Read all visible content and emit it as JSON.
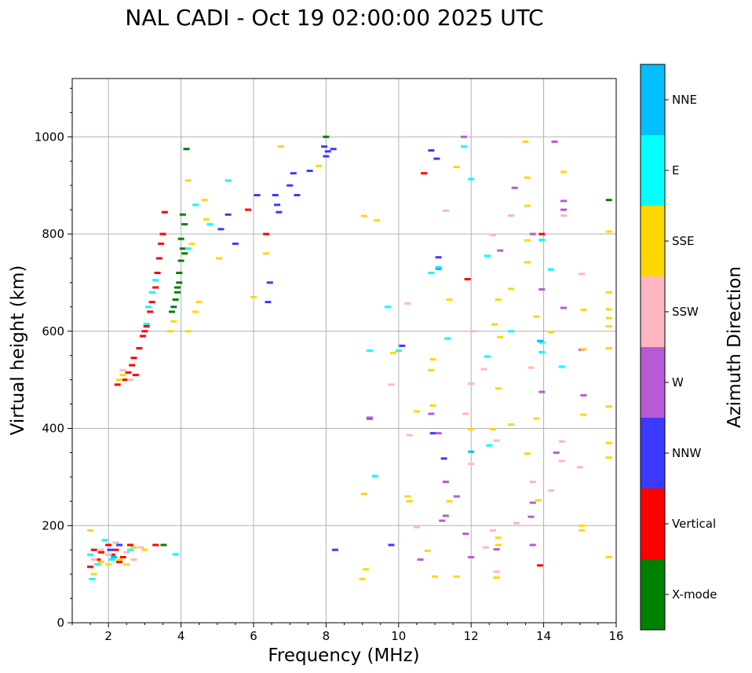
{
  "chart_data": {
    "type": "scatter",
    "title": "NAL CADI - Oct 19 02:00:00 2025 UTC",
    "xlabel": "Frequency (MHz)",
    "ylabel": "Virtual height (km)",
    "xlim": [
      1,
      16
    ],
    "ylim": [
      0,
      1120
    ],
    "xticks": [
      2,
      4,
      6,
      8,
      10,
      12,
      14,
      16
    ],
    "yticks": [
      0,
      200,
      400,
      600,
      800,
      1000
    ],
    "grid": true,
    "colorbar": {
      "label": "Azimuth Direction",
      "categories": [
        {
          "name": "X-mode",
          "color": "#008000"
        },
        {
          "name": "Vertical",
          "color": "#ff0000"
        },
        {
          "name": "NNW",
          "color": "#3a3aff"
        },
        {
          "name": "W",
          "color": "#b85ad6"
        },
        {
          "name": "SSW",
          "color": "#ffb6c1"
        },
        {
          "name": "SSE",
          "color": "#ffd700"
        },
        {
          "name": "E",
          "color": "#00ffff"
        },
        {
          "name": "NNE",
          "color": "#00bfff"
        }
      ]
    },
    "series": [
      {
        "name": "X-mode",
        "color": "#008000",
        "points": [
          [
            3.52,
            160
          ],
          [
            4.15,
            975
          ],
          [
            4.05,
            840
          ],
          [
            4.1,
            820
          ],
          [
            4.0,
            790
          ],
          [
            4.05,
            770
          ],
          [
            4.0,
            745
          ],
          [
            3.95,
            720
          ],
          [
            3.95,
            700
          ],
          [
            3.9,
            680
          ],
          [
            3.85,
            665
          ],
          [
            3.8,
            650
          ],
          [
            3.75,
            640
          ],
          [
            4.1,
            760
          ],
          [
            3.9,
            690
          ],
          [
            15.8,
            870
          ],
          [
            8.0,
            1000
          ]
        ]
      },
      {
        "name": "Vertical",
        "color": "#ff0000",
        "points": [
          [
            1.5,
            115
          ],
          [
            1.7,
            130
          ],
          [
            1.8,
            145
          ],
          [
            2.0,
            160
          ],
          [
            2.2,
            150
          ],
          [
            2.4,
            135
          ],
          [
            2.6,
            160
          ],
          [
            1.6,
            150
          ],
          [
            2.1,
            140
          ],
          [
            2.3,
            125
          ],
          [
            3.3,
            160
          ],
          [
            2.25,
            490
          ],
          [
            2.45,
            500
          ],
          [
            2.55,
            515
          ],
          [
            2.65,
            530
          ],
          [
            2.7,
            545
          ],
          [
            2.85,
            565
          ],
          [
            2.95,
            590
          ],
          [
            3.05,
            610
          ],
          [
            3.15,
            640
          ],
          [
            3.2,
            660
          ],
          [
            3.3,
            690
          ],
          [
            3.35,
            720
          ],
          [
            3.4,
            750
          ],
          [
            3.45,
            780
          ],
          [
            3.5,
            800
          ],
          [
            3.55,
            845
          ],
          [
            10.7,
            925
          ],
          [
            11.9,
            707
          ],
          [
            13.9,
            118
          ],
          [
            13.95,
            800
          ],
          [
            5.85,
            850
          ],
          [
            6.35,
            800
          ],
          [
            2.75,
            510
          ],
          [
            3.0,
            600
          ]
        ]
      },
      {
        "name": "NNW",
        "color": "#3a3aff",
        "points": [
          [
            6.6,
            880
          ],
          [
            6.65,
            860
          ],
          [
            6.7,
            845
          ],
          [
            7.0,
            900
          ],
          [
            7.1,
            925
          ],
          [
            7.2,
            880
          ],
          [
            7.95,
            980
          ],
          [
            8.05,
            970
          ],
          [
            8.2,
            975
          ],
          [
            8.25,
            150
          ],
          [
            9.2,
            420
          ],
          [
            9.8,
            160
          ],
          [
            10.1,
            570
          ],
          [
            10.9,
            972
          ],
          [
            11.05,
            955
          ],
          [
            11.1,
            752
          ],
          [
            10.95,
            390
          ],
          [
            11.25,
            338
          ],
          [
            6.1,
            880
          ],
          [
            5.3,
            840
          ],
          [
            5.1,
            810
          ],
          [
            6.45,
            700
          ],
          [
            6.4,
            660
          ],
          [
            2.05,
            150
          ],
          [
            2.3,
            160
          ],
          [
            7.55,
            930
          ],
          [
            8.0,
            960
          ],
          [
            5.5,
            780
          ]
        ]
      },
      {
        "name": "W",
        "color": "#b85ad6",
        "points": [
          [
            9.2,
            422
          ],
          [
            10.6,
            130
          ],
          [
            10.9,
            430
          ],
          [
            11.2,
            210
          ],
          [
            11.3,
            220
          ],
          [
            11.1,
            390
          ],
          [
            11.3,
            290
          ],
          [
            11.6,
            260
          ],
          [
            11.85,
            183
          ],
          [
            12.0,
            135
          ],
          [
            12.8,
            766
          ],
          [
            13.2,
            895
          ],
          [
            13.65,
            218
          ],
          [
            13.7,
            160
          ],
          [
            13.7,
            247
          ],
          [
            13.95,
            686
          ],
          [
            13.95,
            475
          ],
          [
            14.3,
            990
          ],
          [
            14.35,
            350
          ],
          [
            14.55,
            648
          ],
          [
            14.55,
            868
          ],
          [
            14.55,
            850
          ],
          [
            15.05,
            562
          ],
          [
            15.1,
            468
          ],
          [
            12.7,
            151
          ],
          [
            13.7,
            800
          ],
          [
            11.8,
            1000
          ]
        ]
      },
      {
        "name": "SSW",
        "color": "#ffb6c1",
        "points": [
          [
            1.6,
            130
          ],
          [
            1.8,
            150
          ],
          [
            2.0,
            140
          ],
          [
            2.2,
            165
          ],
          [
            2.5,
            145
          ],
          [
            2.7,
            130
          ],
          [
            2.9,
            155
          ],
          [
            2.4,
            520
          ],
          [
            2.6,
            500
          ],
          [
            9.8,
            490
          ],
          [
            10.25,
            657
          ],
          [
            10.3,
            386
          ],
          [
            11.3,
            848
          ],
          [
            11.85,
            430
          ],
          [
            12.0,
            492
          ],
          [
            12.0,
            327
          ],
          [
            12.05,
            600
          ],
          [
            12.35,
            522
          ],
          [
            12.4,
            155
          ],
          [
            12.6,
            190
          ],
          [
            12.7,
            105
          ],
          [
            12.7,
            375
          ],
          [
            13.1,
            838
          ],
          [
            13.65,
            525
          ],
          [
            13.7,
            290
          ],
          [
            14.2,
            272
          ],
          [
            14.5,
            333
          ],
          [
            14.5,
            373
          ],
          [
            14.55,
            838
          ],
          [
            15.0,
            320
          ],
          [
            15.05,
            718
          ],
          [
            10.5,
            197
          ],
          [
            13.25,
            205
          ],
          [
            12.6,
            798
          ]
        ]
      },
      {
        "name": "SSE",
        "color": "#ffd700",
        "points": [
          [
            1.5,
            190
          ],
          [
            1.6,
            100
          ],
          [
            1.8,
            125
          ],
          [
            2.0,
            120
          ],
          [
            2.3,
            130
          ],
          [
            2.5,
            120
          ],
          [
            2.7,
            155
          ],
          [
            3.0,
            150
          ],
          [
            2.4,
            510
          ],
          [
            2.3,
            500
          ],
          [
            3.7,
            600
          ],
          [
            3.8,
            620
          ],
          [
            4.2,
            600
          ],
          [
            4.4,
            640
          ],
          [
            4.5,
            660
          ],
          [
            4.2,
            910
          ],
          [
            4.7,
            830
          ],
          [
            4.65,
            870
          ],
          [
            4.3,
            780
          ],
          [
            5.05,
            750
          ],
          [
            6.0,
            670
          ],
          [
            6.35,
            760
          ],
          [
            6.75,
            980
          ],
          [
            7.8,
            940
          ],
          [
            9.0,
            90
          ],
          [
            9.1,
            110
          ],
          [
            9.05,
            265
          ],
          [
            9.05,
            837
          ],
          [
            9.4,
            828
          ],
          [
            9.85,
            555
          ],
          [
            10.25,
            260
          ],
          [
            10.3,
            250
          ],
          [
            10.5,
            435
          ],
          [
            10.8,
            148
          ],
          [
            10.9,
            520
          ],
          [
            10.95,
            542
          ],
          [
            10.95,
            447
          ],
          [
            11.0,
            95
          ],
          [
            11.4,
            250
          ],
          [
            11.4,
            665
          ],
          [
            11.6,
            95
          ],
          [
            11.6,
            938
          ],
          [
            12.0,
            398
          ],
          [
            12.6,
            398
          ],
          [
            12.65,
            614
          ],
          [
            12.7,
            93
          ],
          [
            12.75,
            160
          ],
          [
            12.75,
            175
          ],
          [
            12.75,
            482
          ],
          [
            12.75,
            665
          ],
          [
            12.8,
            588
          ],
          [
            13.1,
            408
          ],
          [
            13.1,
            687
          ],
          [
            13.5,
            990
          ],
          [
            13.55,
            348
          ],
          [
            13.55,
            916
          ],
          [
            13.55,
            858
          ],
          [
            13.55,
            742
          ],
          [
            13.55,
            787
          ],
          [
            13.8,
            420
          ],
          [
            13.8,
            630
          ],
          [
            13.85,
            252
          ],
          [
            14.2,
            598
          ],
          [
            14.55,
            928
          ],
          [
            15.05,
            190
          ],
          [
            15.05,
            200
          ],
          [
            15.1,
            428
          ],
          [
            15.1,
            563
          ],
          [
            15.1,
            644
          ],
          [
            15.8,
            135
          ],
          [
            15.8,
            340
          ],
          [
            15.8,
            370
          ],
          [
            15.8,
            445
          ],
          [
            15.8,
            565
          ],
          [
            15.8,
            610
          ],
          [
            15.8,
            627
          ],
          [
            15.8,
            645
          ],
          [
            15.8,
            680
          ],
          [
            15.8,
            805
          ]
        ]
      },
      {
        "name": "E",
        "color": "#00ffff",
        "points": [
          [
            1.55,
            90
          ],
          [
            1.5,
            140
          ],
          [
            1.7,
            120
          ],
          [
            1.9,
            170
          ],
          [
            2.1,
            130
          ],
          [
            2.6,
            150
          ],
          [
            3.05,
            615
          ],
          [
            3.1,
            650
          ],
          [
            3.2,
            680
          ],
          [
            3.3,
            705
          ],
          [
            4.2,
            770
          ],
          [
            4.4,
            860
          ],
          [
            5.3,
            910
          ],
          [
            4.8,
            820
          ],
          [
            9.2,
            560
          ],
          [
            9.35,
            302
          ],
          [
            9.7,
            650
          ],
          [
            10.0,
            560
          ],
          [
            10.9,
            720
          ],
          [
            11.1,
            732
          ],
          [
            11.35,
            585
          ],
          [
            12.0,
            913
          ],
          [
            12.45,
            755
          ],
          [
            12.45,
            548
          ],
          [
            12.5,
            365
          ],
          [
            13.1,
            600
          ],
          [
            13.95,
            577
          ],
          [
            13.95,
            557
          ],
          [
            14.2,
            727
          ],
          [
            14.5,
            527
          ],
          [
            13.95,
            788
          ],
          [
            11.8,
            980
          ],
          [
            3.85,
            141
          ]
        ]
      },
      {
        "name": "NNE",
        "color": "#00bfff",
        "points": [
          [
            12.0,
            352
          ],
          [
            11.1,
            728
          ],
          [
            2.15,
            135
          ],
          [
            13.9,
            580
          ]
        ]
      }
    ]
  }
}
